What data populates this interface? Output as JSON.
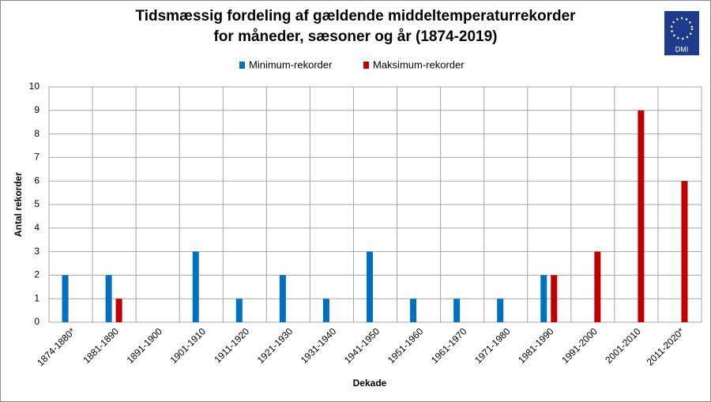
{
  "logo_text": "DMI",
  "chart_data": {
    "type": "bar",
    "title": "Tidsmæssig fordeling af gældende middeltemperaturrekorder",
    "subtitle": "for måneder, sæsoner og år (1874-2019)",
    "x_label": "Dekade",
    "y_label": "Antal rekorder",
    "categories": [
      "1874-1880*",
      "1881-1890",
      "1891-1900",
      "1901-1910",
      "1911-1920",
      "1921-1930",
      "1931-1940",
      "1941-1950",
      "1951-1960",
      "1961-1970",
      "1971-1980",
      "1981-1990",
      "1991-2000",
      "2001-2010",
      "2011-2020*"
    ],
    "series": [
      {
        "name": "Minimum-rekorder",
        "color": "#0070c0",
        "values": [
          2,
          2,
          0,
          3,
          1,
          2,
          1,
          3,
          1,
          1,
          1,
          2,
          0,
          0,
          0
        ]
      },
      {
        "name": "Maksimum-rekorder",
        "color": "#c00000",
        "values": [
          0,
          1,
          0,
          0,
          0,
          0,
          0,
          0,
          0,
          0,
          0,
          2,
          3,
          9,
          6
        ]
      }
    ],
    "ylim": [
      0,
      10
    ],
    "yticks": [
      0,
      1,
      2,
      3,
      4,
      5,
      6,
      7,
      8,
      9,
      10
    ],
    "grid": true,
    "legend": "top"
  }
}
